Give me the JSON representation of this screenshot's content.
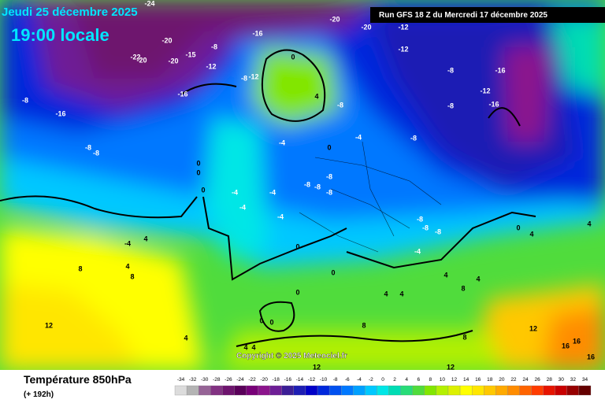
{
  "header": {
    "date": "Jeudi 25 décembre 2025",
    "time": "19:00 locale",
    "run": "Run GFS 18 Z du Mercredi 17 décembre 2025",
    "copyright": "Copyright © 2025 Meteociel.fr"
  },
  "footer": {
    "title": "Température 850hPa",
    "lead": "(+ 192h)"
  },
  "legend": {
    "values": [
      -34,
      -32,
      -30,
      -28,
      -26,
      -24,
      -22,
      -20,
      -18,
      -16,
      -14,
      -12,
      -10,
      -8,
      -6,
      -4,
      -2,
      0,
      2,
      4,
      6,
      8,
      10,
      12,
      14,
      16,
      18,
      20,
      22,
      24,
      26,
      28,
      30,
      32,
      34
    ],
    "colors": [
      "#dcdcdc",
      "#b4b4b4",
      "#966496",
      "#823282",
      "#6e146e",
      "#5a005a",
      "#780078",
      "#8c148c",
      "#6e1e96",
      "#3c1e96",
      "#1e1eb4",
      "#0000c8",
      "#0028dc",
      "#0050f0",
      "#0078ff",
      "#00a0ff",
      "#00c8ff",
      "#00e6e6",
      "#00dcb4",
      "#28dc78",
      "#50dc3c",
      "#82e600",
      "#b4f000",
      "#dcf000",
      "#ffff00",
      "#ffe600",
      "#ffc800",
      "#ffaa00",
      "#ff8c00",
      "#ff6400",
      "#ff3c00",
      "#e61400",
      "#c80000",
      "#960000",
      "#640000"
    ]
  },
  "map_labels": [
    -24,
    -20,
    -20,
    -12,
    -16,
    -20,
    -8,
    -15,
    -20,
    -22,
    -20,
    -12,
    0,
    -8,
    -12,
    4,
    -8,
    -12,
    -8,
    -16,
    -12,
    -16,
    -8,
    -16,
    -8,
    -16,
    -8,
    -8,
    -4,
    -4,
    0,
    -8,
    0,
    0,
    0,
    -4,
    -4,
    -8,
    -8,
    -8,
    -8,
    -4,
    -4,
    -8,
    -8,
    -8,
    4,
    -4,
    -4,
    0,
    8,
    4,
    8,
    4,
    0,
    4,
    0,
    4,
    4,
    8,
    0,
    4,
    4,
    12,
    0,
    0,
    8,
    4,
    4,
    4,
    12,
    16,
    16,
    16,
    8,
    12,
    12
  ]
}
